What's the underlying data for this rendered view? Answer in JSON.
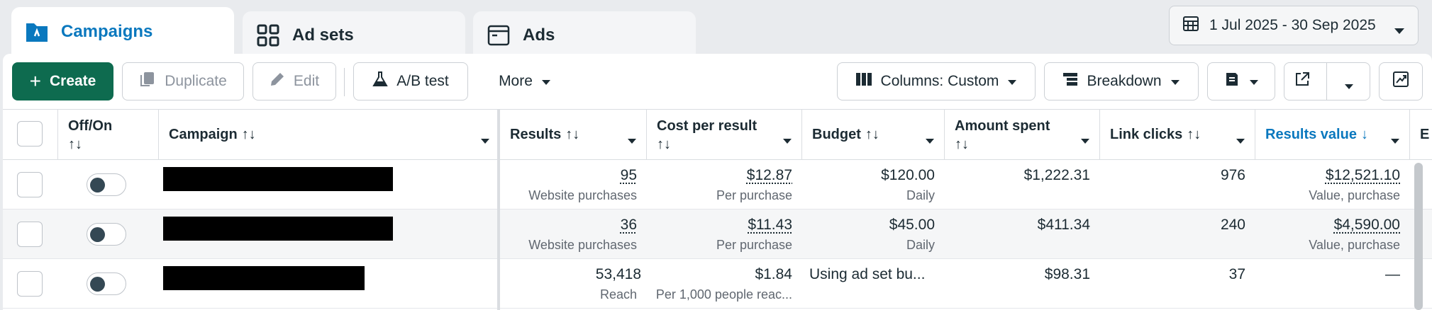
{
  "tabs": [
    {
      "label": "Campaigns",
      "icon": "campaigns-folder-icon",
      "active": true
    },
    {
      "label": "Ad sets",
      "icon": "ad-sets-grid-icon",
      "active": false
    },
    {
      "label": "Ads",
      "icon": "ads-window-icon",
      "active": false
    }
  ],
  "date_range": "1 Jul 2025 - 30 Sep 2025",
  "toolbar": {
    "create": "Create",
    "duplicate": "Duplicate",
    "edit": "Edit",
    "ab_test": "A/B test",
    "more": "More",
    "columns": "Columns: Custom",
    "breakdown": "Breakdown"
  },
  "columns": {
    "offon": "Off/On",
    "campaign": "Campaign",
    "results": "Results",
    "cost_per_result": "Cost per result",
    "budget": "Budget",
    "amount_spent": "Amount spent",
    "link_clicks": "Link clicks",
    "results_value": "Results value",
    "next_partial": "E"
  },
  "rows": [
    {
      "results": "95",
      "results_sub": "Website purchases",
      "cpr": "$12.87",
      "cpr_sub": "Per purchase",
      "budget": "$120.00",
      "budget_sub": "Daily",
      "spent": "$1,222.31",
      "clicks": "976",
      "value": "$12,521.10",
      "value_sub": "Value, purchase"
    },
    {
      "results": "36",
      "results_sub": "Website purchases",
      "cpr": "$11.43",
      "cpr_sub": "Per purchase",
      "budget": "$45.00",
      "budget_sub": "Daily",
      "spent": "$411.34",
      "clicks": "240",
      "value": "$4,590.00",
      "value_sub": "Value, purchase"
    },
    {
      "results": "53,418",
      "results_sub": "Reach",
      "cpr": "$1.84",
      "cpr_sub": "Per 1,000 people reac...",
      "budget": "Using ad set bu...",
      "budget_sub": "",
      "spent": "$98.31",
      "clicks": "37",
      "value": "—",
      "value_sub": ""
    }
  ],
  "colors": {
    "accent": "#0a78be",
    "create_green": "#0e6b4f"
  }
}
